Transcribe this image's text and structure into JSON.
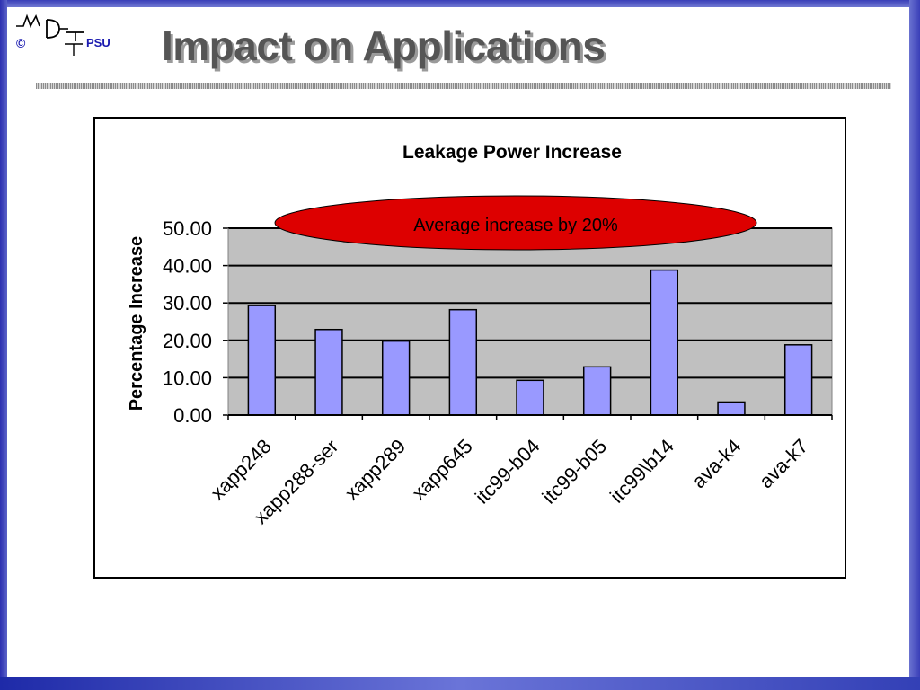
{
  "slide": {
    "title": "Impact on Applications",
    "logo": {
      "copyright_symbol": "©",
      "org": "PSU",
      "mark": "MDT"
    }
  },
  "colors": {
    "frame_blue": "#3a3fb8",
    "bar_fill": "#9999ff",
    "plot_bg": "#c0c0c0",
    "callout_fill": "#dd0000",
    "title_text": "#555555"
  },
  "callout": {
    "text": "Average increase by 20%"
  },
  "chart_data": {
    "type": "bar",
    "title": "Leakage Power Increase",
    "xlabel": "",
    "ylabel": "Percentage Increase",
    "ylim": [
      0,
      50
    ],
    "yticks": [
      "0.00",
      "10.00",
      "20.00",
      "30.00",
      "40.00",
      "50.00"
    ],
    "grid": true,
    "legend": "none",
    "categories": [
      "xapp248",
      "xapp288-ser",
      "xapp289",
      "xapp645",
      "itc99-b04",
      "itc99-b05",
      "itc99\\b14",
      "ava-k4",
      "ava-k7"
    ],
    "values": [
      29.3,
      22.9,
      19.8,
      28.2,
      9.3,
      12.9,
      38.8,
      3.5,
      18.8
    ]
  }
}
